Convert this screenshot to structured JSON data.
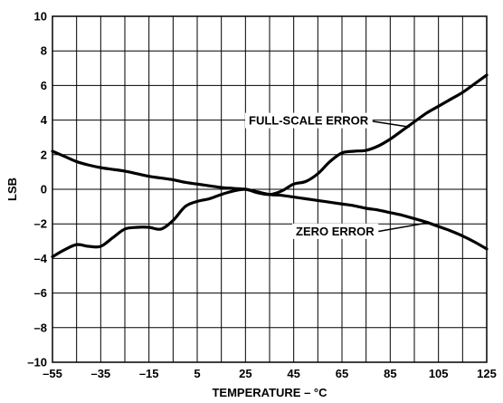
{
  "chart_data": {
    "type": "line",
    "title": "",
    "xlabel": "TEMPERATURE – °C",
    "ylabel": "LSB",
    "xlim": [
      -55,
      125
    ],
    "ylim": [
      -10,
      10
    ],
    "x_ticks": [
      -55,
      -45,
      -35,
      -25,
      -15,
      -5,
      5,
      15,
      25,
      35,
      45,
      55,
      65,
      75,
      85,
      95,
      105,
      115,
      125
    ],
    "x_tick_labels": [
      "–55",
      "–35",
      "–15",
      "5",
      "25",
      "45",
      "65",
      "85",
      "105",
      "125"
    ],
    "x_tick_label_values": [
      -55,
      -35,
      -15,
      5,
      25,
      45,
      65,
      85,
      105,
      125
    ],
    "y_ticks": [
      -10,
      -8,
      -6,
      -4,
      -2,
      0,
      2,
      4,
      6,
      8,
      10
    ],
    "y_tick_labels": [
      "–10",
      "–8",
      "–6",
      "–4",
      "–2",
      "0",
      "2",
      "4",
      "6",
      "8",
      "10"
    ],
    "grid": true,
    "series": [
      {
        "name": "FULL-SCALE ERROR",
        "x": [
          -55,
          -50,
          -45,
          -40,
          -35,
          -30,
          -25,
          -20,
          -15,
          -10,
          -5,
          0,
          5,
          10,
          15,
          20,
          25,
          30,
          35,
          40,
          45,
          50,
          55,
          60,
          65,
          70,
          75,
          80,
          85,
          90,
          95,
          100,
          105,
          110,
          115,
          120,
          125
        ],
        "y": [
          -3.9,
          -3.5,
          -3.2,
          -3.3,
          -3.3,
          -2.8,
          -2.3,
          -2.2,
          -2.2,
          -2.3,
          -1.8,
          -1.0,
          -0.7,
          -0.55,
          -0.3,
          -0.1,
          0.0,
          -0.2,
          -0.3,
          -0.1,
          0.3,
          0.45,
          0.9,
          1.6,
          2.1,
          2.2,
          2.25,
          2.5,
          2.9,
          3.4,
          3.9,
          4.4,
          4.8,
          5.2,
          5.6,
          6.1,
          6.6
        ]
      },
      {
        "name": "ZERO ERROR",
        "x": [
          -55,
          -50,
          -45,
          -40,
          -35,
          -30,
          -25,
          -20,
          -15,
          -10,
          -5,
          0,
          5,
          10,
          15,
          20,
          25,
          30,
          35,
          40,
          45,
          50,
          55,
          60,
          65,
          70,
          75,
          80,
          85,
          90,
          95,
          100,
          105,
          110,
          115,
          120,
          125
        ],
        "y": [
          2.2,
          1.9,
          1.6,
          1.4,
          1.25,
          1.15,
          1.05,
          0.9,
          0.75,
          0.65,
          0.55,
          0.4,
          0.3,
          0.2,
          0.1,
          0.05,
          0.0,
          -0.15,
          -0.3,
          -0.35,
          -0.45,
          -0.55,
          -0.65,
          -0.75,
          -0.85,
          -0.95,
          -1.1,
          -1.2,
          -1.35,
          -1.5,
          -1.7,
          -1.9,
          -2.15,
          -2.4,
          -2.7,
          -3.05,
          -3.45
        ]
      }
    ],
    "annotations": [
      {
        "text": "FULL-SCALE ERROR",
        "series": "FULL-SCALE ERROR"
      },
      {
        "text": "ZERO ERROR",
        "series": "ZERO ERROR"
      }
    ]
  }
}
